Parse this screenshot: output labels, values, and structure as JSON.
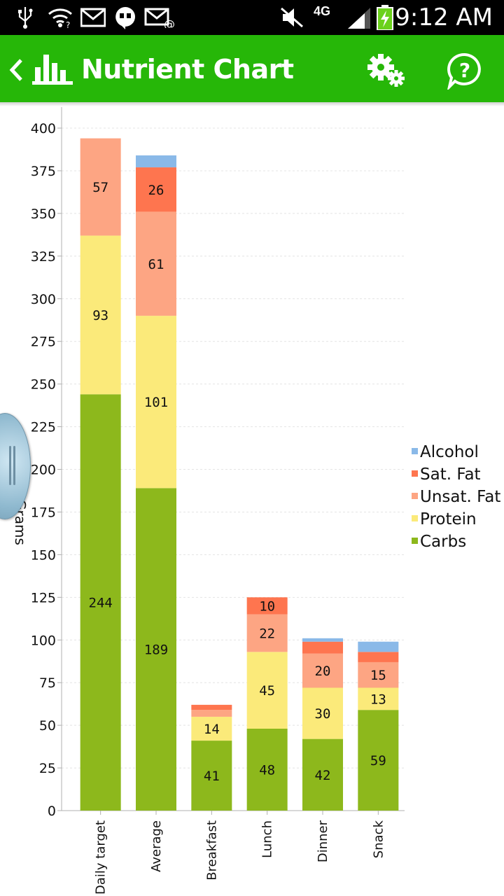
{
  "status_bar": {
    "time": "9:12 AM",
    "network": "4G",
    "icons": [
      "usb-icon",
      "wifi-icon",
      "gmail-icon",
      "hangouts-icon",
      "email-icon",
      "mute-icon",
      "signal-icon",
      "battery-charging-icon"
    ]
  },
  "action_bar": {
    "title": "Nutrient Chart",
    "back_icon": "back-chevron-icon",
    "app_icon": "bar-chart-icon",
    "actions": [
      "settings-gears-icon",
      "help-icon"
    ],
    "color": "#26b708"
  },
  "chart_data": {
    "type": "bar",
    "stacked": true,
    "categories": [
      "Daily target",
      "Average",
      "Breakfast",
      "Lunch",
      "Dinner",
      "Snack"
    ],
    "series": [
      {
        "name": "Carbs",
        "color": "#8db81c",
        "values": [
          244,
          189,
          41,
          48,
          42,
          59
        ],
        "labels": [
          "244",
          "189",
          "41",
          "48",
          "42",
          "59"
        ]
      },
      {
        "name": "Protein",
        "color": "#fbea7a",
        "values": [
          93,
          101,
          14,
          45,
          30,
          13
        ],
        "labels": [
          "93",
          "101",
          "14",
          "45",
          "30",
          "13"
        ]
      },
      {
        "name": "Unsat. Fat",
        "color": "#fda583",
        "values": [
          57,
          61,
          4,
          22,
          20,
          15
        ],
        "labels": [
          "57",
          "61",
          "",
          "22",
          "20",
          "15"
        ]
      },
      {
        "name": "Sat. Fat",
        "color": "#fe754f",
        "values": [
          0,
          26,
          3,
          10,
          7,
          6
        ],
        "labels": [
          "",
          "26",
          "",
          "10",
          "",
          ""
        ]
      },
      {
        "name": "Alcohol",
        "color": "#8ab9e8",
        "values": [
          0,
          7,
          0,
          0,
          2,
          6
        ],
        "labels": [
          "",
          "",
          "",
          "",
          "",
          ""
        ]
      }
    ],
    "legend_order": [
      "Alcohol",
      "Sat. Fat",
      "Unsat. Fat",
      "Protein",
      "Carbs"
    ],
    "legend_position": "right",
    "ylim": [
      0,
      400
    ],
    "yticks": [
      0,
      25,
      50,
      75,
      100,
      125,
      150,
      175,
      200,
      225,
      250,
      275,
      300,
      325,
      350,
      375,
      400
    ],
    "ylabel": "Grams",
    "xlabel": "",
    "grid": true
  }
}
